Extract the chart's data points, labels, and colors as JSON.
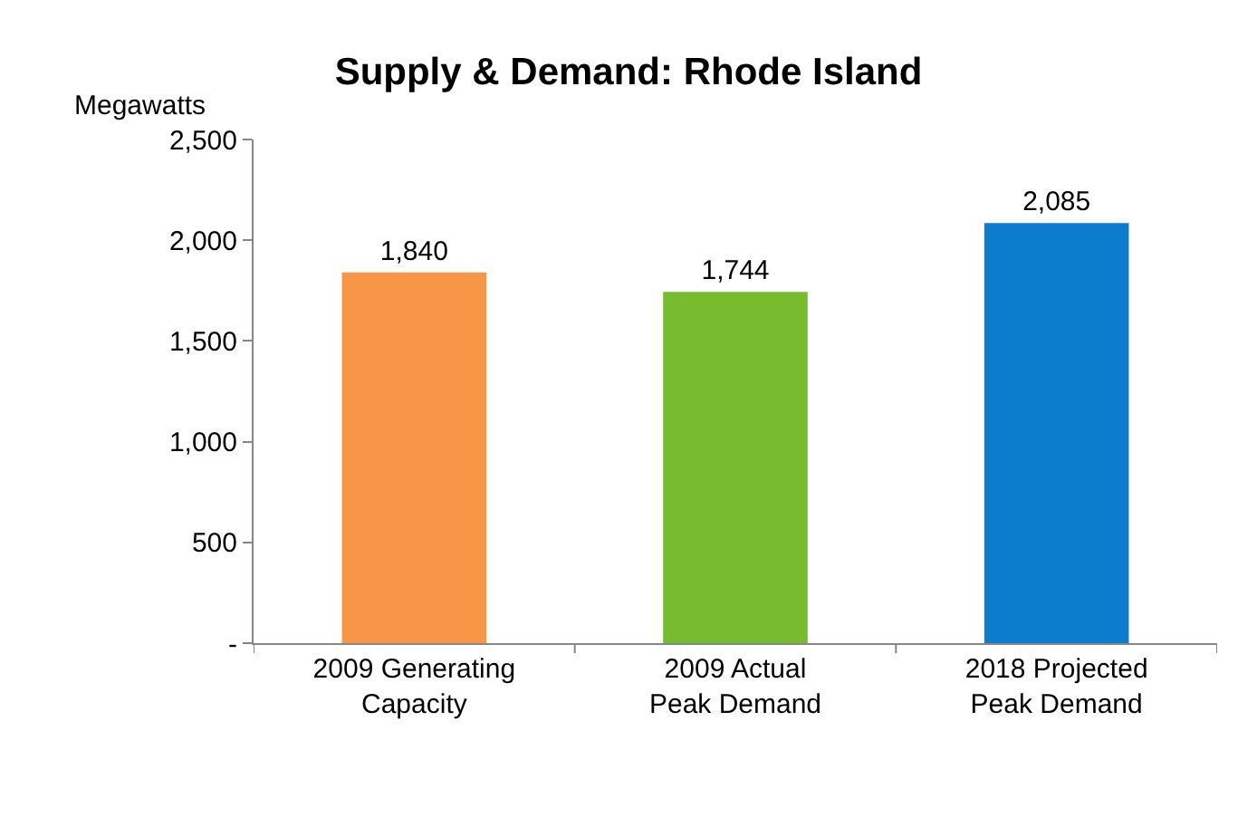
{
  "chart_data": {
    "type": "bar",
    "title": "Supply & Demand: Rhode Island",
    "ylabel": "Megawatts",
    "categories": [
      "2009 Generating Capacity",
      "2009 Actual Peak Demand",
      "2018 Projected Peak Demand"
    ],
    "values": [
      1840,
      1744,
      2085
    ],
    "colors": [
      "#f79646",
      "#77bc2e",
      "#0b7dcc"
    ],
    "ylim": [
      0,
      2500
    ],
    "yticks": [
      {
        "value": 0,
        "label": "-"
      },
      {
        "value": 500,
        "label": "500"
      },
      {
        "value": 1000,
        "label": "1,000"
      },
      {
        "value": 1500,
        "label": "1,500"
      },
      {
        "value": 2000,
        "label": "2,000"
      },
      {
        "value": 2500,
        "label": "2,500"
      }
    ],
    "value_labels": [
      "1,840",
      "1,744",
      "2,085"
    ]
  }
}
